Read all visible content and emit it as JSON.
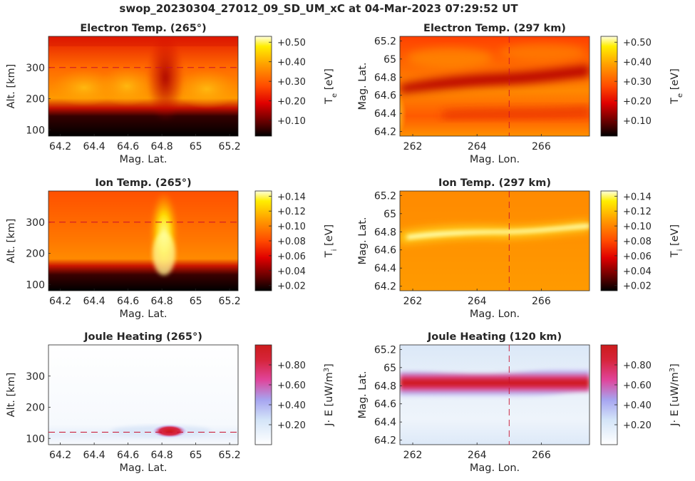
{
  "title": "swop_20230304_27012_09_SD_UM_xC at 04-Mar-2023 07:29:52 UT",
  "chart_data": [
    {
      "type": "heatmap",
      "title": "Electron Temp. (265°)",
      "xlabel": "Mag. Lat.",
      "ylabel": "Alt. [km]",
      "xlim": [
        64.13,
        65.25
      ],
      "ylim": [
        80,
        400
      ],
      "xticks": [
        "64.2",
        "64.4",
        "64.6",
        "64.8",
        "65",
        "65.2"
      ],
      "yticks": [
        "100",
        "200",
        "300"
      ],
      "colorbar": {
        "label": "T",
        "label_sub": "e",
        "label_unit": " [eV]",
        "colormap": "hot",
        "range": [
          0.02,
          0.53
        ],
        "ticks": [
          "+0.10",
          "+0.20",
          "+0.30",
          "+0.40",
          "+0.50"
        ],
        "tick_values": [
          0.1,
          0.2,
          0.3,
          0.4,
          0.5
        ]
      },
      "reference_line": {
        "axis": "y",
        "value": 300
      }
    },
    {
      "type": "heatmap",
      "title": "Electron Temp. (297 km)",
      "xlabel": "Mag. Lon.",
      "ylabel": "Mag. Lat.",
      "xlim": [
        261.6,
        267.5
      ],
      "ylim": [
        64.15,
        65.25
      ],
      "xticks": [
        "262",
        "264",
        "266"
      ],
      "yticks": [
        "64.2",
        "64.4",
        "64.6",
        "64.8",
        "65",
        "65.2"
      ],
      "colorbar": {
        "label": "T",
        "label_sub": "e",
        "label_unit": " [eV]",
        "colormap": "hot",
        "range": [
          0.02,
          0.53
        ],
        "ticks": [
          "+0.10",
          "+0.20",
          "+0.30",
          "+0.40",
          "+0.50"
        ],
        "tick_values": [
          0.1,
          0.2,
          0.3,
          0.4,
          0.5
        ]
      },
      "reference_line": {
        "axis": "x",
        "value": 265
      }
    },
    {
      "type": "heatmap",
      "title": "Ion Temp. (265°)",
      "xlabel": "Mag. Lat.",
      "ylabel": "Alt. [km]",
      "xlim": [
        64.13,
        65.25
      ],
      "ylim": [
        80,
        400
      ],
      "xticks": [
        "64.2",
        "64.4",
        "64.6",
        "64.8",
        "65",
        "65.2"
      ],
      "yticks": [
        "100",
        "200",
        "300"
      ],
      "colorbar": {
        "label": "T",
        "label_sub": "i",
        "label_unit": " [eV]",
        "colormap": "hot",
        "range": [
          0.013,
          0.147
        ],
        "ticks": [
          "+0.02",
          "+0.04",
          "+0.06",
          "+0.08",
          "+0.10",
          "+0.12",
          "+0.14"
        ],
        "tick_values": [
          0.02,
          0.04,
          0.06,
          0.08,
          0.1,
          0.12,
          0.14
        ]
      },
      "reference_line": {
        "axis": "y",
        "value": 300
      }
    },
    {
      "type": "heatmap",
      "title": "Ion Temp. (297 km)",
      "xlabel": "Mag. Lon.",
      "ylabel": "Mag. Lat.",
      "xlim": [
        261.6,
        267.5
      ],
      "ylim": [
        64.15,
        65.25
      ],
      "xticks": [
        "262",
        "264",
        "266"
      ],
      "yticks": [
        "64.2",
        "64.4",
        "64.6",
        "64.8",
        "65",
        "65.2"
      ],
      "colorbar": {
        "label": "T",
        "label_sub": "i",
        "label_unit": " [eV]",
        "colormap": "hot",
        "range": [
          0.013,
          0.147
        ],
        "ticks": [
          "+0.02",
          "+0.04",
          "+0.06",
          "+0.08",
          "+0.10",
          "+0.12",
          "+0.14"
        ],
        "tick_values": [
          0.02,
          0.04,
          0.06,
          0.08,
          0.1,
          0.12,
          0.14
        ]
      },
      "reference_line": {
        "axis": "x",
        "value": 265
      }
    },
    {
      "type": "heatmap",
      "title": "Joule Heating (265°)",
      "xlabel": "Mag. Lat.",
      "ylabel": "Alt. [km]",
      "xlim": [
        64.13,
        65.25
      ],
      "ylim": [
        80,
        400
      ],
      "xticks": [
        "64.2",
        "64.4",
        "64.6",
        "64.8",
        "65",
        "65.2"
      ],
      "yticks": [
        "100",
        "200",
        "300"
      ],
      "colorbar": {
        "label": "J· E [uW/m",
        "label_sup": "3",
        "label_unit": "]",
        "colormap": "white-blue-red",
        "range": [
          0.0,
          1.0
        ],
        "ticks": [
          "+0.20",
          "+0.40",
          "+0.60",
          "+0.80"
        ],
        "tick_values": [
          0.2,
          0.4,
          0.6,
          0.8
        ]
      },
      "reference_line": {
        "axis": "y",
        "value": 120
      }
    },
    {
      "type": "heatmap",
      "title": "Joule Heating (120 km)",
      "xlabel": "Mag. Lon.",
      "ylabel": "Mag. Lat.",
      "xlim": [
        261.6,
        267.5
      ],
      "ylim": [
        64.15,
        65.25
      ],
      "xticks": [
        "262",
        "264",
        "266"
      ],
      "yticks": [
        "64.2",
        "64.4",
        "64.6",
        "64.8",
        "65",
        "65.2"
      ],
      "colorbar": {
        "label": "J· E [uW/m",
        "label_sup": "3",
        "label_unit": "]",
        "colormap": "white-blue-red",
        "range": [
          0.0,
          1.0
        ],
        "ticks": [
          "+0.20",
          "+0.40",
          "+0.60",
          "+0.80"
        ],
        "tick_values": [
          0.2,
          0.4,
          0.6,
          0.8
        ]
      },
      "reference_line": {
        "axis": "x",
        "value": 265
      }
    }
  ]
}
